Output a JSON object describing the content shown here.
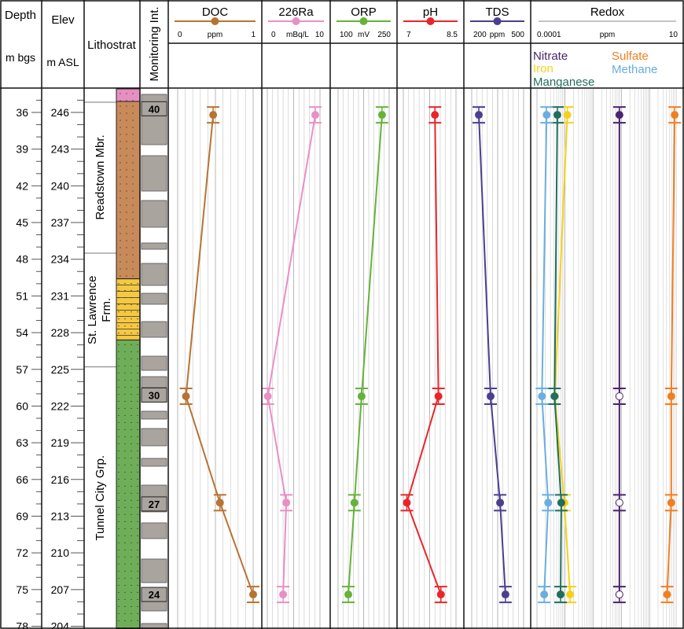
{
  "headers": {
    "depth": {
      "title": "Depth",
      "unit": "m bgs"
    },
    "elev": {
      "title": "Elev",
      "unit": "m ASL"
    },
    "lithostrat": "Lithostrat",
    "monitoring": "Monitoring Int."
  },
  "formations": [
    {
      "name": "Readstown Mbr.",
      "top": 35.1,
      "bottom": 47.5
    },
    {
      "name": "St. Lawrence",
      "name2": "Frm.",
      "top": 47.5,
      "bottom": 56.8
    },
    {
      "name": "Tunnel City Grp.",
      "top": 56.8,
      "bottom": 79
    }
  ],
  "lithology_colors": {
    "pink": "#e58fc2",
    "brown": "#c98a5a",
    "yellow": "#f5c842",
    "green": "#6fae58"
  },
  "lithology_units": [
    {
      "color": "pink",
      "top": 34,
      "bottom": 35.1
    },
    {
      "color": "brown",
      "top": 35.1,
      "bottom": 49.6
    },
    {
      "color": "yellow",
      "top": 49.6,
      "bottom": 54.6
    },
    {
      "color": "green",
      "top": 54.6,
      "bottom": 79
    }
  ],
  "monitoring_intervals": [
    {
      "label": "40",
      "depth": 35.7
    },
    {
      "label": "30",
      "depth": 59.1
    },
    {
      "label": "27",
      "depth": 68.0
    },
    {
      "label": "24",
      "depth": 75.4
    }
  ],
  "chart_data": {
    "type": "line",
    "y_axis": {
      "label": "Depth",
      "unit": "m bgs",
      "range": [
        34,
        79
      ],
      "ticks": [
        36,
        39,
        42,
        45,
        48,
        51,
        54,
        57,
        60,
        63,
        66,
        69,
        72,
        75,
        78
      ]
    },
    "y2_axis": {
      "label": "Elev",
      "unit": "m ASL",
      "ticks": [
        246,
        243,
        240,
        237,
        234,
        231,
        228,
        225,
        222,
        219,
        216,
        213,
        210,
        207,
        204
      ]
    },
    "depths": [
      36.2,
      59.2,
      67.9,
      75.4
    ],
    "panels": [
      {
        "name": "DOC",
        "unit": "ppm",
        "min_label": "0",
        "max_label": "1",
        "range": [
          0,
          1
        ],
        "scale": "linear",
        "color": "#b87333",
        "series": [
          {
            "name": "DOC",
            "values": [
              0.47,
              0.11,
              0.56,
              1.0
            ]
          }
        ]
      },
      {
        "name": "226Ra",
        "unit": "mBq/L",
        "min_label": "0",
        "max_label": "10",
        "range": [
          0,
          10
        ],
        "scale": "linear",
        "color": "#e98fc5",
        "series": [
          {
            "name": "226Ra",
            "values": [
              9.1,
              0.1,
              3.6,
              3.0
            ]
          }
        ]
      },
      {
        "name": "ORP",
        "unit": "mV",
        "min_label": "100",
        "max_label": "250",
        "range": [
          100,
          250
        ],
        "scale": "linear",
        "color": "#66b23a",
        "series": [
          {
            "name": "ORP",
            "values": [
              229,
              169,
              148,
              130
            ]
          }
        ]
      },
      {
        "name": "pH",
        "unit": "",
        "min_label": "7",
        "max_label": "8.5",
        "range": [
          7,
          8.5
        ],
        "scale": "linear",
        "color": "#e8262a",
        "series": [
          {
            "name": "pH",
            "values": [
              7.9,
              8.0,
              7.1,
              8.07
            ]
          }
        ]
      },
      {
        "name": "TDS",
        "unit": "ppm",
        "min_label": "200",
        "max_label": "500",
        "range": [
          200,
          500
        ],
        "scale": "linear",
        "color": "#4b3f8f",
        "series": [
          {
            "name": "TDS",
            "values": [
              241,
              309,
              364,
              395
            ]
          }
        ]
      },
      {
        "name": "Redox",
        "unit": "ppm",
        "min_label": "0.0001",
        "max_label": "10",
        "range": [
          0.0001,
          10
        ],
        "scale": "log",
        "color": "#888888",
        "series": [
          {
            "name": "Nitrate",
            "color": "#4a2470",
            "values": [
              0.085,
              0.085,
              0.085,
              0.085
            ],
            "open": [
              false,
              true,
              true,
              true
            ]
          },
          {
            "name": "Iron",
            "color": "#f7d117",
            "values": [
              0.0012,
              0.00043,
              0.00094,
              0.0015
            ]
          },
          {
            "name": "Manganese",
            "color": "#1f6f5c",
            "values": [
              0.00053,
              0.00042,
              0.00073,
              0.00069
            ]
          },
          {
            "name": "Sulfate",
            "color": "#f07f22",
            "values": [
              7.8,
              5.9,
              5.9,
              4.2
            ]
          },
          {
            "name": "Methane",
            "color": "#6aaee0",
            "values": [
              0.00022,
              0.00015,
              0.00025,
              0.00018
            ]
          }
        ]
      }
    ]
  }
}
